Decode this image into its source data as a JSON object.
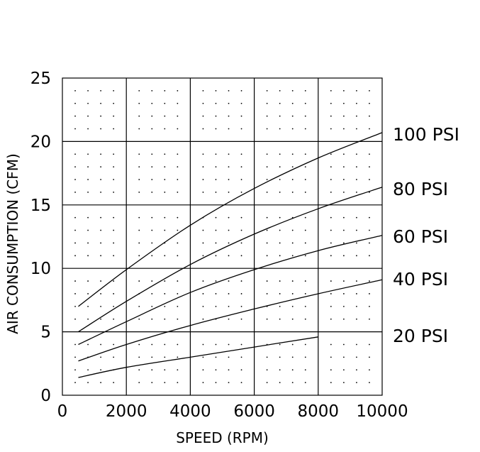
{
  "chart_data": {
    "type": "line",
    "xlabel": "SPEED (RPM)",
    "ylabel": "AIR CONSUMPTION (CFM)",
    "xlim": [
      0,
      10000
    ],
    "ylim": [
      0,
      25
    ],
    "x_ticks": [
      "0",
      "2000",
      "4000",
      "6000",
      "8000",
      "10000"
    ],
    "y_ticks": [
      "0",
      "5",
      "10",
      "15",
      "20",
      "25"
    ],
    "grid": true,
    "legend": "right (labels beside line ends)",
    "series": [
      {
        "name": "100 PSI",
        "x": [
          500,
          2000,
          4000,
          6000,
          8000,
          10000
        ],
        "y": [
          7.0,
          9.9,
          13.4,
          16.3,
          18.7,
          20.7
        ]
      },
      {
        "name": "80 PSI",
        "x": [
          500,
          2000,
          4000,
          6000,
          8000,
          10000
        ],
        "y": [
          5.0,
          7.4,
          10.3,
          12.7,
          14.7,
          16.4
        ]
      },
      {
        "name": "60 PSI",
        "x": [
          500,
          2000,
          4000,
          6000,
          8000,
          10000
        ],
        "y": [
          4.0,
          5.8,
          8.1,
          9.9,
          11.4,
          12.6
        ]
      },
      {
        "name": "40 PSI",
        "x": [
          500,
          2000,
          4000,
          6000,
          8000,
          10000
        ],
        "y": [
          2.7,
          4.0,
          5.5,
          6.8,
          8.0,
          9.1
        ]
      },
      {
        "name": "20 PSI",
        "x": [
          500,
          2000,
          4000,
          6000,
          8000
        ],
        "y": [
          1.4,
          2.2,
          3.0,
          3.8,
          4.6
        ]
      }
    ]
  }
}
